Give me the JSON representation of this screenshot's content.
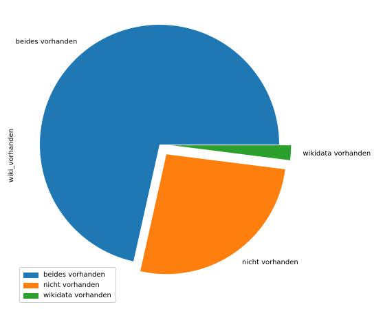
{
  "chart_data": {
    "type": "pie",
    "ylabel": "wiki_vorhanden",
    "labels": [
      "beides vorhanden",
      "nicht vorhanden",
      "wikidata vorhanden"
    ],
    "values": [
      71.5,
      26.5,
      2.0
    ],
    "colors": [
      "#1f77b4",
      "#ff7f0e",
      "#2ca02c"
    ],
    "explode": [
      0.0,
      0.1,
      0.1
    ],
    "start_angle_deg": 0,
    "direction": "counterclockwise",
    "legend": {
      "position": "lower-left",
      "entries": [
        "beides vorhanden",
        "nicht vorhanden",
        "wikidata vorhanden"
      ]
    }
  }
}
